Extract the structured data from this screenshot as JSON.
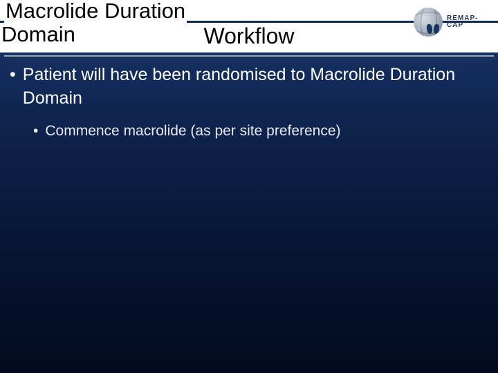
{
  "title": {
    "line1": "Macrolide Duration",
    "overlap": "Domain",
    "center": "Workflow"
  },
  "logo": {
    "text": "REMAP-CAP"
  },
  "bullets": {
    "level1": "Patient will have been randomised to Macrolide Duration Domain",
    "level2": "Commence macrolide (as per site preference)"
  },
  "colors": {
    "bg_top": "#1a3a6e",
    "bg_bottom": "#020a1f",
    "band": "#ffffff",
    "band_border": "#0b2a5a",
    "divider": "#9aa6b8",
    "text_title": "#000000",
    "text_body": "#ffffff"
  },
  "typography": {
    "title_fontsize": 31,
    "center_fontsize": 32,
    "bullet1_fontsize": 25,
    "bullet2_fontsize": 21,
    "logo_fontsize": 10
  }
}
